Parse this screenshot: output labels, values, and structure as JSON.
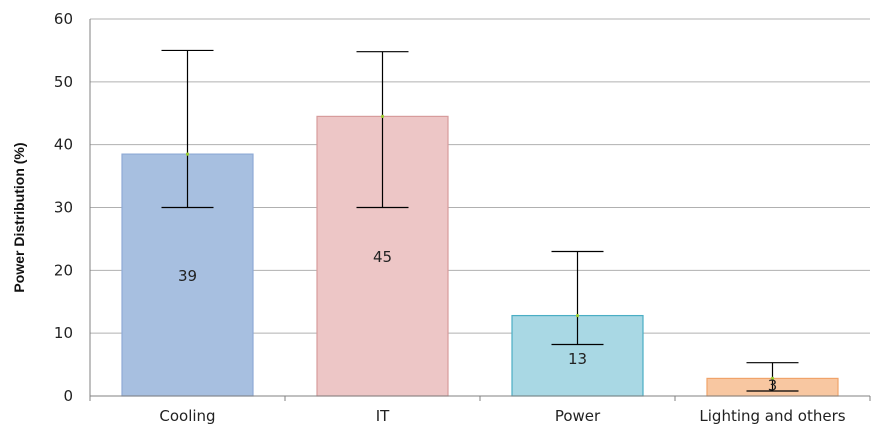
{
  "chart_data": {
    "type": "bar",
    "title": "",
    "xlabel": "",
    "ylabel": "Power Distribution (%)",
    "categories": [
      "Cooling",
      "IT",
      "Power",
      "Lighting and others"
    ],
    "values": [
      38.5,
      44.5,
      12.8,
      2.8
    ],
    "data_labels": [
      "39",
      "45",
      "13",
      "3"
    ],
    "error_low": [
      30,
      30,
      8.2,
      0.8
    ],
    "error_high": [
      55,
      54.8,
      23,
      5.3
    ],
    "ylim": [
      0,
      60
    ],
    "yticks": [
      "0",
      "10",
      "20",
      "30",
      "40",
      "50",
      "60"
    ],
    "grid": true,
    "legend": "none",
    "colors": {
      "Cooling": {
        "fill": "#a7bfe0",
        "stroke": "#8fabd6"
      },
      "IT": {
        "fill": "#edc6c6",
        "stroke": "#d79c9c"
      },
      "Power": {
        "fill": "#a9d8e4",
        "stroke": "#4aaec4"
      },
      "Lighting and others": {
        "fill": "#f8c7a1",
        "stroke": "#f0a36a"
      },
      "gridline": "#b0b0b0",
      "axis": "#808080",
      "errorbar": "#000000",
      "marker": "#9acd32"
    }
  }
}
